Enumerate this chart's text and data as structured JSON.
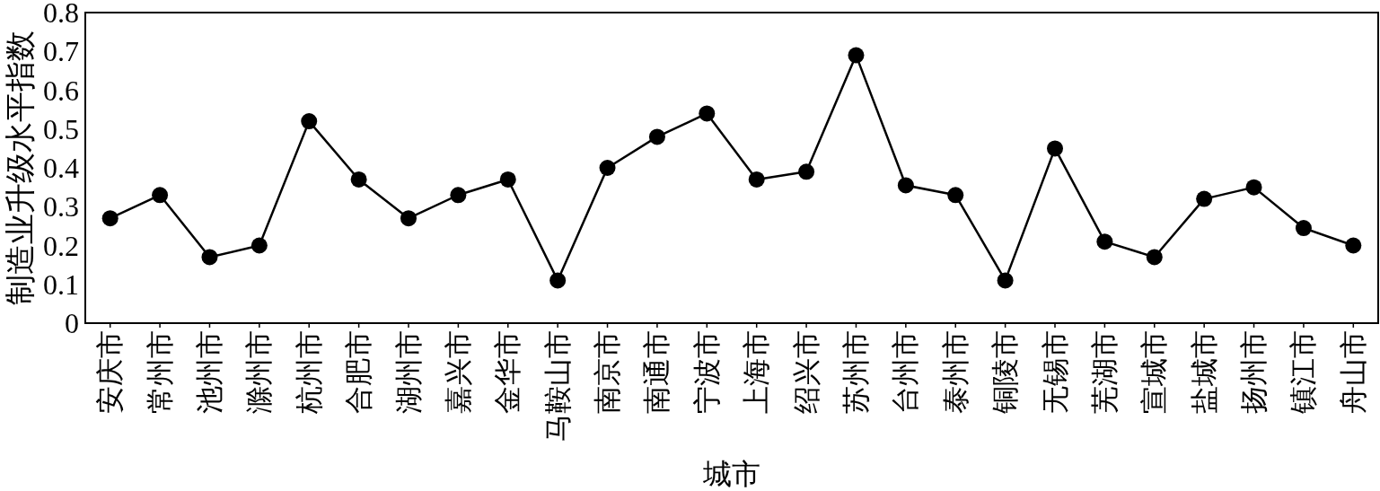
{
  "chart_data": {
    "type": "line",
    "xlabel": "城市",
    "ylabel": "制造业升级水平指数",
    "categories": [
      "安庆市",
      "常州市",
      "池州市",
      "滁州市",
      "杭州市",
      "合肥市",
      "湖州市",
      "嘉兴市",
      "金华市",
      "马鞍山市",
      "南京市",
      "南通市",
      "宁波市",
      "上海市",
      "绍兴市",
      "苏州市",
      "台州市",
      "泰州市",
      "铜陵市",
      "无锡市",
      "芜湖市",
      "宣城市",
      "盐城市",
      "扬州市",
      "镇江市",
      "舟山市"
    ],
    "series": [
      {
        "color": "#000000",
        "values": [
          0.27,
          0.33,
          0.17,
          0.2,
          0.52,
          0.37,
          0.27,
          0.33,
          0.37,
          0.11,
          0.4,
          0.48,
          0.54,
          0.37,
          0.39,
          0.69,
          0.355,
          0.33,
          0.11,
          0.45,
          0.21,
          0.17,
          0.32,
          0.35,
          0.245,
          0.2
        ]
      }
    ],
    "ylim": [
      0,
      0.8
    ],
    "yticks": [
      0,
      0.1,
      0.2,
      0.3,
      0.4,
      0.5,
      0.6,
      0.7,
      0.8
    ],
    "marker": "circle",
    "line_style": "solid"
  }
}
